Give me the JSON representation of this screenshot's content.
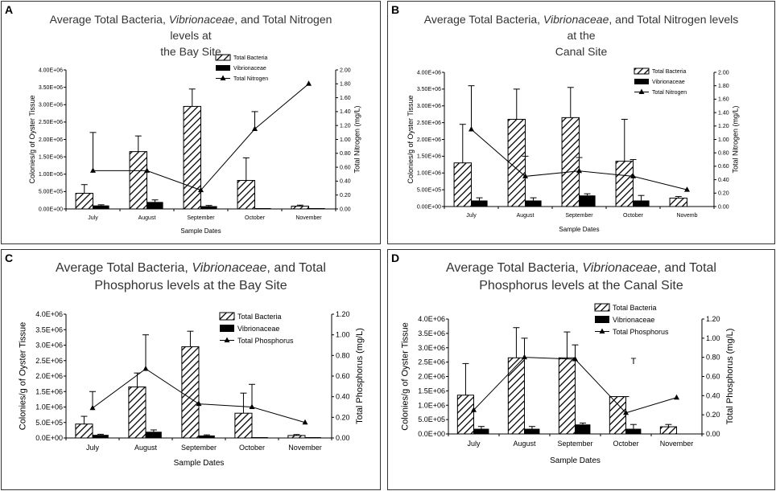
{
  "colors": {
    "hatch": "#000000",
    "line": "#000000",
    "border": "#333333"
  },
  "chart_data": [
    {
      "panel_label": "A",
      "type": "bar",
      "title_parts": [
        "Average Total Bacteria, ",
        "Vibrionaceae",
        ", and Total Nitrogen levels at",
        "the Bay Site"
      ],
      "categories": [
        "July",
        "August",
        "September",
        "October",
        "November"
      ],
      "xlabel": "Sample Dates",
      "ylabel": "Colonies/g of Oyster Tissue",
      "ylabel2": "Total Nitrogen (mg/L)",
      "ylim": [
        0,
        4000000
      ],
      "y2lim": [
        0,
        2.0
      ],
      "yticks": [
        "0.00E+00",
        "5.00E+05",
        "1.00E+06",
        "1.50E+06",
        "2.00E+06",
        "2.50E+06",
        "3.00E+06",
        "3.50E+06",
        "4.00E+06"
      ],
      "y2ticks": [
        "0.00",
        "0.20",
        "0.40",
        "0.60",
        "0.80",
        "1.00",
        "1.20",
        "1.40",
        "1.60",
        "1.80",
        "2.00"
      ],
      "legend": [
        "Total Bacteria",
        "Vibrionaceae",
        "Total Nitrogen"
      ],
      "series": [
        {
          "name": "Total Bacteria",
          "values": [
            450000,
            1650000,
            2950000,
            820000,
            80000
          ],
          "errors": [
            250000,
            450000,
            500000,
            650000,
            30000
          ]
        },
        {
          "name": "Vibrionaceae",
          "values": [
            100000,
            200000,
            80000,
            10000,
            5000
          ],
          "errors": [
            20000,
            60000,
            20000,
            0,
            0
          ]
        },
        {
          "name": "Total Nitrogen",
          "axis": "right",
          "values": [
            0.55,
            0.55,
            0.27,
            1.15,
            1.8
          ],
          "errors": [
            0.55,
            0,
            0,
            0.25,
            0
          ]
        }
      ]
    },
    {
      "panel_label": "B",
      "type": "bar",
      "title_parts": [
        "Average Total Bacteria, ",
        "Vibrionaceae",
        ", and Total Nitrogen levels at the",
        "Canal Site"
      ],
      "categories": [
        "July",
        "August",
        "September",
        "October",
        "Novemb"
      ],
      "xlabel": "Sample Dates",
      "ylabel": "Colonies/g of Oyster Tissue",
      "ylabel2": "Total Nitrogen (mg/L)",
      "ylim": [
        0,
        4000000
      ],
      "y2lim": [
        0,
        2.0
      ],
      "yticks": [
        "0.00E+00",
        "5.00E+05",
        "1.00E+06",
        "1.50E+06",
        "2.00E+06",
        "2.50E+06",
        "3.00E+06",
        "3.50E+06",
        "4.00E+06"
      ],
      "y2ticks": [
        "0.00",
        "0.20",
        "0.40",
        "0.60",
        "0.80",
        "1.00",
        "1.20",
        "1.40",
        "1.60",
        "1.80",
        "2.00"
      ],
      "legend": [
        "Total Bacteria",
        "Vibrionaceae",
        "Total Nitrogen"
      ],
      "series": [
        {
          "name": "Total Bacteria",
          "values": [
            1300000,
            2600000,
            2650000,
            1350000,
            250000
          ],
          "errors": [
            1150000,
            900000,
            900000,
            1250000,
            50000
          ]
        },
        {
          "name": "Vibrionaceae",
          "values": [
            180000,
            180000,
            330000,
            180000,
            0
          ],
          "errors": [
            80000,
            80000,
            50000,
            150000,
            0
          ]
        },
        {
          "name": "Total Nitrogen",
          "axis": "right",
          "values": [
            1.15,
            0.45,
            0.53,
            0.45,
            0.25
          ],
          "errors": [
            0.65,
            0.3,
            0.2,
            0.25,
            0
          ]
        }
      ]
    },
    {
      "panel_label": "C",
      "type": "bar",
      "title_parts": [
        "Average Total Bacteria, ",
        "Vibrionaceae",
        ", and Total",
        "Phosphorus levels at the Bay Site"
      ],
      "categories": [
        "July",
        "August",
        "September",
        "October",
        "November"
      ],
      "xlabel": "Sample Dates",
      "ylabel": "Colonies/g of Oyster Tissue",
      "ylabel2": "Total Phosphorus (mg/L)",
      "ylim": [
        0,
        4000000
      ],
      "y2lim": [
        0,
        1.2
      ],
      "yticks": [
        "0.0E+00",
        "5.0E+05",
        "1.0E+06",
        "1.5E+06",
        "2.0E+06",
        "2.5E+06",
        "3.0E+06",
        "3.5E+06",
        "4.0E+06"
      ],
      "y2ticks": [
        "0.00",
        "0.20",
        "0.40",
        "0.60",
        "0.80",
        "1.00",
        "1.20"
      ],
      "legend": [
        "Total Bacteria",
        "Vibrionaceae",
        "Total Phosphorus"
      ],
      "series": [
        {
          "name": "Total Bacteria",
          "values": [
            450000,
            1650000,
            2950000,
            800000,
            80000
          ],
          "errors": [
            250000,
            450000,
            500000,
            650000,
            30000
          ]
        },
        {
          "name": "Vibrionaceae",
          "values": [
            100000,
            200000,
            80000,
            10000,
            5000
          ],
          "errors": [
            20000,
            60000,
            20000,
            0,
            0
          ]
        },
        {
          "name": "Total Phosphorus",
          "axis": "right",
          "values": [
            0.29,
            0.67,
            0.33,
            0.3,
            0.15
          ],
          "errors": [
            0.16,
            0.33,
            0,
            0.22,
            0
          ]
        }
      ]
    },
    {
      "panel_label": "D",
      "type": "bar",
      "title_parts": [
        "Average Total Bacteria, ",
        "Vibrionaceae",
        ", and Total",
        "Phosphorus levels at the Canal Site"
      ],
      "categories": [
        "July",
        "August",
        "September",
        "October",
        "November"
      ],
      "xlabel": "Sample Dates",
      "ylabel": "Colonies/g of Oyster Tissue",
      "ylabel2": "Total Phosphorus (mg/L)",
      "ylim": [
        0,
        4000000
      ],
      "y2lim": [
        0,
        1.2
      ],
      "yticks": [
        "0.0E+00",
        "5.0E+05",
        "1.0E+06",
        "1.5E+06",
        "2.0E+06",
        "2.5E+06",
        "3.0E+06",
        "3.5E+06",
        "4.0E+06"
      ],
      "y2ticks": [
        "0.00",
        "0.20",
        "0.40",
        "0.60",
        "0.80",
        "1.00",
        "1.20"
      ],
      "legend": [
        "Total Bacteria",
        "Vibrionaceae",
        "Total Phosphorus"
      ],
      "series": [
        {
          "name": "Total Bacteria",
          "values": [
            1350000,
            2650000,
            2650000,
            1300000,
            250000
          ],
          "errors": [
            1100000,
            1050000,
            900000,
            0,
            80000
          ]
        },
        {
          "name": "Vibrionaceae",
          "values": [
            180000,
            180000,
            330000,
            180000,
            0
          ],
          "errors": [
            80000,
            80000,
            50000,
            150000,
            0
          ]
        },
        {
          "name": "Total Phosphorus",
          "axis": "right",
          "values": [
            0.25,
            0.8,
            0.78,
            0.22,
            0.38
          ],
          "errors": [
            0,
            0.2,
            0.15,
            0.17,
            0
          ]
        }
      ],
      "annotation": "T"
    }
  ]
}
